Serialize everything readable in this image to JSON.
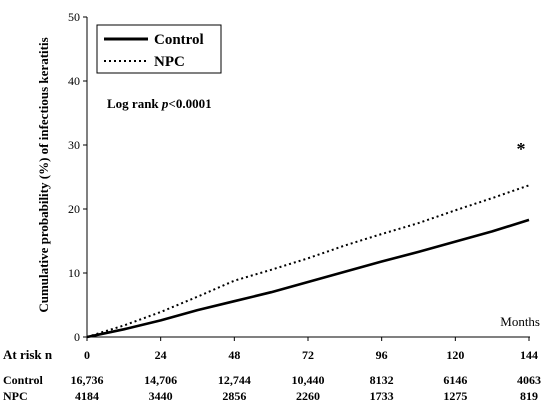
{
  "chart_data": {
    "type": "line",
    "ylabel": "Cumulative probability (%) of infectious keratitis",
    "x_unit_label": "Months",
    "xlim": [
      0,
      144
    ],
    "ylim": [
      0,
      50
    ],
    "x_ticks": [
      0,
      24,
      48,
      72,
      96,
      120,
      144
    ],
    "y_ticks": [
      0,
      10,
      20,
      30,
      40,
      50
    ],
    "legend": {
      "placement": "top-left",
      "entries": [
        {
          "name": "Control",
          "style": "solid"
        },
        {
          "name": "NPC",
          "style": "dotted"
        }
      ]
    },
    "annotations": {
      "log_rank_prefix": "Log rank ",
      "log_rank_p": "p",
      "log_rank_value": "<0.0001",
      "significance_mark": "*"
    },
    "series": [
      {
        "name": "Control",
        "x": [
          0,
          6,
          12,
          24,
          36,
          48,
          60,
          72,
          84,
          96,
          108,
          120,
          132,
          144
        ],
        "values": [
          0,
          0.6,
          1.2,
          2.6,
          4.2,
          5.6,
          7.0,
          8.6,
          10.2,
          11.8,
          13.3,
          14.9,
          16.5,
          18.3
        ]
      },
      {
        "name": "NPC",
        "x": [
          0,
          6,
          12,
          24,
          36,
          48,
          60,
          72,
          84,
          96,
          108,
          120,
          132,
          144
        ],
        "values": [
          0,
          0.9,
          1.8,
          3.9,
          6.3,
          8.8,
          10.5,
          12.3,
          14.3,
          16.1,
          17.8,
          19.8,
          21.7,
          23.7
        ]
      }
    ],
    "at_risk": {
      "header": "At risk n",
      "rows": [
        {
          "label": "Control",
          "values": [
            "16,736",
            "14,706",
            "12,744",
            "10,440",
            "8132",
            "6146",
            "4063"
          ]
        },
        {
          "label": "NPC",
          "values": [
            "4184",
            "3440",
            "2856",
            "2260",
            "1733",
            "1275",
            "819"
          ]
        }
      ]
    }
  }
}
